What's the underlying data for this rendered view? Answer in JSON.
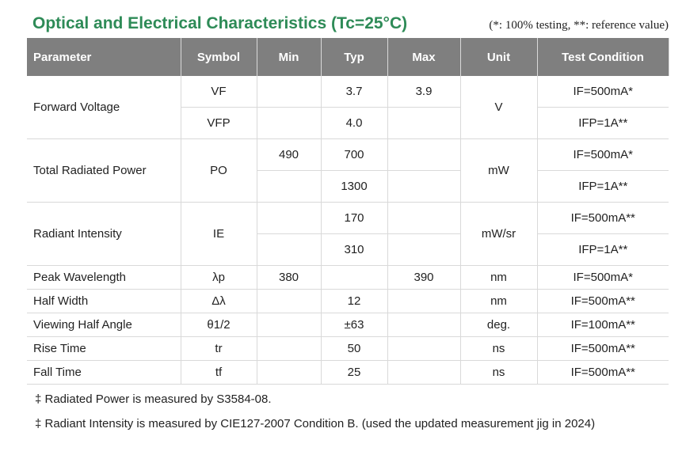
{
  "title": "Optical and Electrical Characteristics (Tc=25°C)",
  "note": "(*: 100% testing, **: reference value)",
  "headers": [
    "Parameter",
    "Symbol",
    "Min",
    "Typ",
    "Max",
    "Unit",
    "Test Condition"
  ],
  "rows": {
    "forward_voltage": {
      "parameter": "Forward Voltage",
      "unit": "V",
      "sub": [
        {
          "symbol": "VF",
          "min": "",
          "typ": "3.7",
          "max": "3.9",
          "cond": "IF=500mA*"
        },
        {
          "symbol": "VFP",
          "min": "",
          "typ": "4.0",
          "max": "",
          "cond": "IFP=1A**"
        }
      ]
    },
    "total_radiated_power": {
      "parameter": "Total Radiated Power",
      "symbol": "PO",
      "unit": "mW",
      "sub": [
        {
          "min": "490",
          "typ": "700",
          "max": "",
          "cond": "IF=500mA*"
        },
        {
          "min": "",
          "typ": "1300",
          "max": "",
          "cond": "IFP=1A**"
        }
      ]
    },
    "radiant_intensity": {
      "parameter": "Radiant Intensity",
      "symbol": "IE",
      "unit": "mW/sr",
      "sub": [
        {
          "min": "",
          "typ": "170",
          "max": "",
          "cond": "IF=500mA**"
        },
        {
          "min": "",
          "typ": "310",
          "max": "",
          "cond": "IFP=1A**"
        }
      ]
    },
    "simple": [
      {
        "parameter": "Peak Wavelength",
        "symbol": "λp",
        "min": "380",
        "typ": "",
        "max": "390",
        "unit": "nm",
        "cond": "IF=500mA*"
      },
      {
        "parameter": "Half Width",
        "symbol": "Δλ",
        "min": "",
        "typ": "12",
        "max": "",
        "unit": "nm",
        "cond": "IF=500mA**"
      },
      {
        "parameter": "Viewing Half Angle",
        "symbol": "θ1/2",
        "min": "",
        "typ": "±63",
        "max": "",
        "unit": "deg.",
        "cond": "IF=100mA**"
      },
      {
        "parameter": "Rise Time",
        "symbol": "tr",
        "min": "",
        "typ": "50",
        "max": "",
        "unit": "ns",
        "cond": "IF=500mA**"
      },
      {
        "parameter": "Fall Time",
        "symbol": "tf",
        "min": "",
        "typ": "25",
        "max": "",
        "unit": "ns",
        "cond": "IF=500mA**"
      }
    ]
  },
  "footnotes": [
    "‡ Radiated Power is measured by S3584-08.",
    "‡ Radiant Intensity is measured by CIE127-2007 Condition B. (used the updated measurement jig in 2024)"
  ]
}
